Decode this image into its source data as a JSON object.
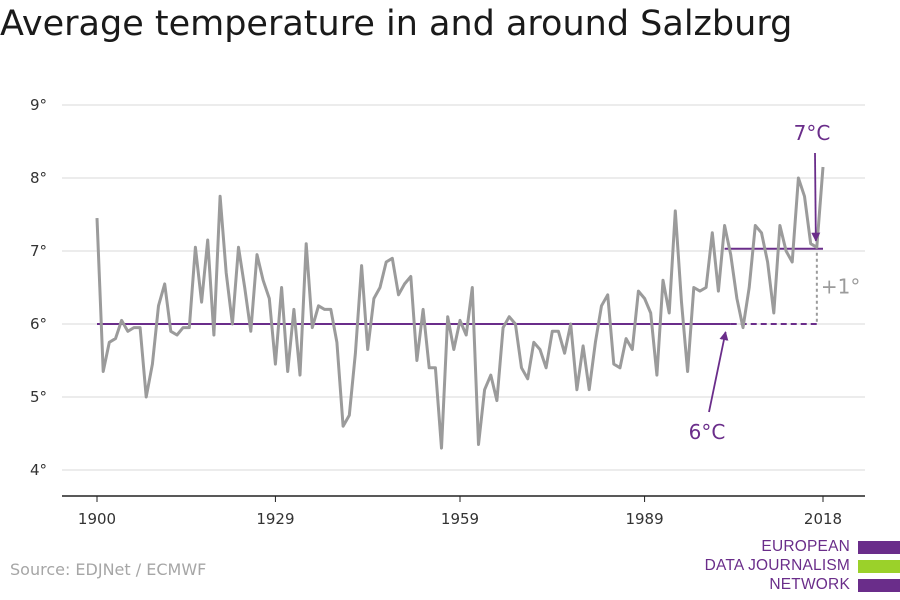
{
  "title": "Average temperature in and around Salzburg",
  "source": "Source: EDJNet / ECMWF",
  "logo": {
    "lines": [
      "EUROPEAN",
      "DATA JOURNALISM",
      "NETWORK"
    ],
    "colors": [
      "#6a2d8a",
      "#9bd12a",
      "#6a2d8a"
    ]
  },
  "colors": {
    "series": "#9b9b9b",
    "reference": "#6a2d8a",
    "grid": "#d9d9d9",
    "axis": "#222222",
    "difference": "#9b9b9b"
  },
  "chart_data": {
    "type": "line",
    "title": "Average temperature in and around Salzburg",
    "xlabel": "",
    "ylabel": "",
    "xlim": [
      1900,
      2018
    ],
    "ylim": [
      4,
      9
    ],
    "x_ticks": [
      1900,
      1929,
      1959,
      1989,
      2018
    ],
    "x_tick_labels": [
      "1900",
      "1929",
      "1959",
      "1989",
      "2018"
    ],
    "y_ticks": [
      4,
      5,
      6,
      7,
      8,
      9
    ],
    "y_tick_labels": [
      "4°",
      "5°",
      "6°",
      "7°",
      "8°",
      "9°"
    ],
    "grid": true,
    "series": [
      {
        "name": "",
        "x": [
          1900,
          1901,
          1902,
          1903,
          1904,
          1905,
          1906,
          1907,
          1908,
          1909,
          1910,
          1911,
          1912,
          1913,
          1914,
          1915,
          1916,
          1917,
          1918,
          1919,
          1920,
          1921,
          1922,
          1923,
          1924,
          1925,
          1926,
          1927,
          1928,
          1929,
          1930,
          1931,
          1932,
          1933,
          1934,
          1935,
          1936,
          1937,
          1938,
          1939,
          1940,
          1941,
          1942,
          1943,
          1944,
          1945,
          1946,
          1947,
          1948,
          1949,
          1950,
          1951,
          1952,
          1953,
          1954,
          1955,
          1956,
          1957,
          1958,
          1959,
          1960,
          1961,
          1962,
          1963,
          1964,
          1965,
          1966,
          1967,
          1968,
          1969,
          1970,
          1971,
          1972,
          1973,
          1974,
          1975,
          1976,
          1977,
          1978,
          1979,
          1980,
          1981,
          1982,
          1983,
          1984,
          1985,
          1986,
          1987,
          1988,
          1989,
          1990,
          1991,
          1992,
          1993,
          1994,
          1995,
          1996,
          1997,
          1998,
          1999,
          2000,
          2001,
          2002,
          2003,
          2004,
          2005,
          2006,
          2007,
          2008,
          2009,
          2010,
          2011,
          2012,
          2013,
          2014,
          2015,
          2016,
          2017,
          2018
        ],
        "y": [
          7.45,
          5.35,
          5.75,
          5.8,
          6.05,
          5.9,
          5.95,
          5.95,
          5.0,
          5.45,
          6.25,
          6.55,
          5.9,
          5.85,
          5.95,
          5.95,
          7.05,
          6.3,
          7.15,
          5.85,
          7.75,
          6.7,
          6.0,
          7.05,
          6.5,
          5.9,
          6.95,
          6.6,
          6.35,
          5.45,
          6.5,
          5.35,
          6.2,
          5.3,
          7.1,
          5.95,
          6.25,
          6.2,
          6.2,
          5.75,
          4.6,
          4.75,
          5.6,
          6.8,
          5.65,
          6.35,
          6.5,
          6.85,
          6.9,
          6.4,
          6.55,
          6.65,
          5.5,
          6.2,
          5.4,
          5.4,
          4.3,
          6.1,
          5.65,
          6.05,
          5.85,
          6.5,
          4.35,
          5.1,
          5.3,
          4.95,
          5.95,
          6.1,
          6.0,
          5.4,
          5.25,
          5.75,
          5.65,
          5.4,
          5.9,
          5.9,
          5.6,
          6.0,
          5.1,
          5.7,
          5.1,
          5.75,
          6.25,
          6.4,
          5.45,
          5.4,
          5.8,
          5.65,
          6.45,
          6.35,
          6.15,
          5.3,
          6.6,
          6.15,
          7.55,
          6.3,
          5.35,
          6.5,
          6.45,
          6.5,
          7.25,
          6.45,
          7.35,
          6.95,
          6.35,
          5.95,
          6.5,
          7.35,
          7.25,
          6.85,
          6.15,
          7.35,
          7.0,
          6.85,
          8.0,
          7.75,
          7.1,
          7.05,
          8.15
        ]
      }
    ],
    "reference_lines": [
      {
        "from": 1900,
        "to": 2003,
        "value": 6.0,
        "style": "solid"
      },
      {
        "from": 2003,
        "to": 2017,
        "value": 6.0,
        "style": "dashed"
      },
      {
        "from": 2002,
        "to": 2018,
        "value": 7.03,
        "style": "solid"
      }
    ],
    "annotations": [
      {
        "text": "7°C",
        "points_to": [
          2017,
          7.03
        ]
      },
      {
        "text": "6°C",
        "points_to": [
          2002,
          6.0
        ]
      },
      {
        "text": "+1°",
        "between": [
          6.0,
          7.03
        ],
        "at_x": 2017
      }
    ]
  }
}
